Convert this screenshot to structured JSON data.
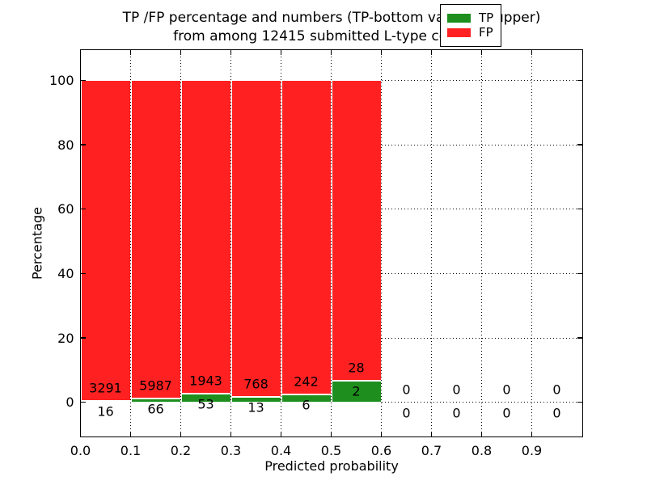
{
  "chart_data": {
    "type": "bar",
    "stacked": true,
    "normalized": "each bin stacked to 100 percent",
    "title_line1": "TP /FP percentage and numbers (TP-bottom value, FP-upper)",
    "title_line2": "from among 12415 submitted L-type contacts",
    "xlabel": "Predicted probability",
    "ylabel": "Percentage",
    "bin_starts": [
      0.0,
      0.1,
      0.2,
      0.3,
      0.4,
      0.5,
      0.6,
      0.7,
      0.8,
      0.9
    ],
    "bin_width": 0.1,
    "series": [
      {
        "name": "TP",
        "color": "#1e8f1e",
        "values": [
          16,
          66,
          53,
          13,
          6,
          2,
          0,
          0,
          0,
          0
        ]
      },
      {
        "name": "FP",
        "color": "#ff2121",
        "values": [
          3291,
          5987,
          1943,
          768,
          242,
          28,
          0,
          0,
          0,
          0
        ]
      }
    ],
    "xtick_labels": [
      "0.0",
      "0.1",
      "0.2",
      "0.3",
      "0.4",
      "0.5",
      "0.6",
      "0.7",
      "0.8",
      "0.9"
    ],
    "ytick_values": [
      0,
      20,
      40,
      60,
      80,
      100
    ],
    "ytick_labels": [
      "0",
      "20",
      "40",
      "60",
      "80",
      "100"
    ],
    "xlim": [
      0.0,
      1.0
    ],
    "ylim": [
      -10.5,
      109.5
    ],
    "grid": "dotted",
    "bar_edge_color": "#ffffff",
    "legend": {
      "position": "upper right",
      "entries": [
        {
          "label": "TP",
          "color": "#1e8f1e"
        },
        {
          "label": "FP",
          "color": "#ff2121"
        }
      ]
    }
  }
}
